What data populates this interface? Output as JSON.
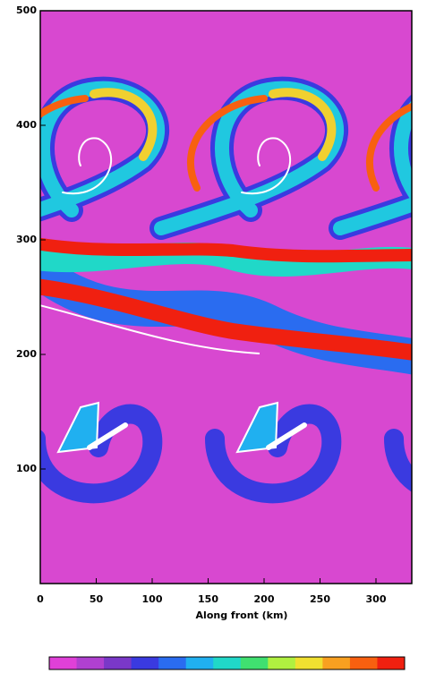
{
  "chart_data": {
    "type": "heatmap",
    "x_label": "Along front (km)",
    "xlim": [
      0,
      332
    ],
    "xticks": [
      0,
      50,
      100,
      150,
      200,
      250,
      300
    ],
    "ylim": [
      0,
      500
    ],
    "yticks": [
      100,
      200,
      300,
      400,
      500
    ],
    "background": "#d848d0",
    "colorbar": {
      "colors": [
        "#e040d8",
        "#b040d0",
        "#7a38c8",
        "#3a3ae0",
        "#2a6cf0",
        "#20b0f0",
        "#20d8c8",
        "#40e070",
        "#b0f040",
        "#f0e030",
        "#f8a020",
        "#f86010",
        "#f02010"
      ]
    }
  }
}
